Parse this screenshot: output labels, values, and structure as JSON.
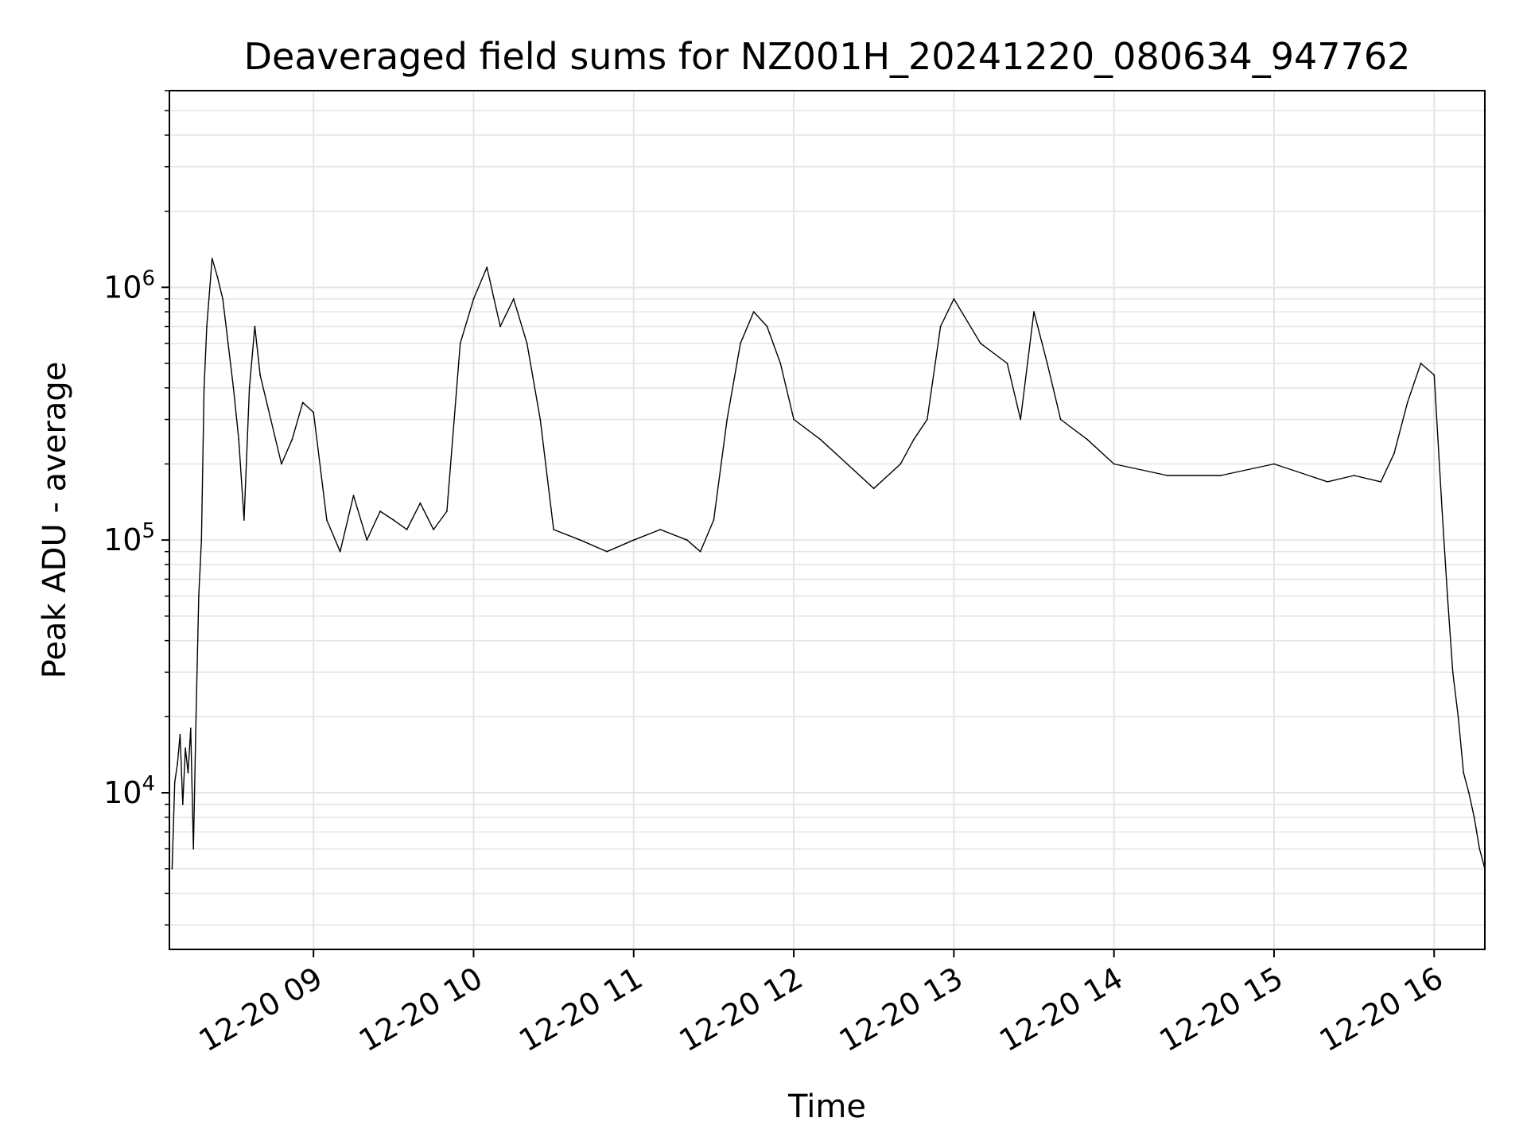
{
  "chart_data": {
    "type": "line",
    "title": "Deaveraged field sums for NZ001H_20241220_080634_947762",
    "xlabel": "Time",
    "ylabel": "Peak ADU - average",
    "yscale": "log",
    "grid": true,
    "legend": "none",
    "line_color": "#000000",
    "grid_color": "#e5e5e5",
    "xlim": [
      "2024-12-20 08:06",
      "2024-12-20 16:19"
    ],
    "ylim": [
      2400,
      6000000
    ],
    "x_ticks": [
      {
        "value": "2024-12-20 09:00",
        "label": "12-20 09"
      },
      {
        "value": "2024-12-20 10:00",
        "label": "12-20 10"
      },
      {
        "value": "2024-12-20 11:00",
        "label": "12-20 11"
      },
      {
        "value": "2024-12-20 12:00",
        "label": "12-20 12"
      },
      {
        "value": "2024-12-20 13:00",
        "label": "12-20 13"
      },
      {
        "value": "2024-12-20 14:00",
        "label": "12-20 14"
      },
      {
        "value": "2024-12-20 15:00",
        "label": "12-20 15"
      },
      {
        "value": "2024-12-20 16:00",
        "label": "12-20 16"
      }
    ],
    "y_ticks": [
      {
        "value": 10000,
        "base": "10",
        "exp": "4"
      },
      {
        "value": 100000,
        "base": "10",
        "exp": "5"
      },
      {
        "value": 1000000,
        "base": "10",
        "exp": "6"
      }
    ],
    "series": [
      {
        "x": [
          "2024-12-20 08:07",
          "2024-12-20 08:08",
          "2024-12-20 08:09",
          "2024-12-20 08:10",
          "2024-12-20 08:11",
          "2024-12-20 08:12",
          "2024-12-20 08:13",
          "2024-12-20 08:14",
          "2024-12-20 08:15",
          "2024-12-20 08:16",
          "2024-12-20 08:17",
          "2024-12-20 08:18",
          "2024-12-20 08:19",
          "2024-12-20 08:20",
          "2024-12-20 08:22",
          "2024-12-20 08:24",
          "2024-12-20 08:26",
          "2024-12-20 08:28",
          "2024-12-20 08:30",
          "2024-12-20 08:32",
          "2024-12-20 08:34",
          "2024-12-20 08:36",
          "2024-12-20 08:38",
          "2024-12-20 08:40",
          "2024-12-20 08:44",
          "2024-12-20 08:48",
          "2024-12-20 08:52",
          "2024-12-20 08:56",
          "2024-12-20 09:00",
          "2024-12-20 09:05",
          "2024-12-20 09:10",
          "2024-12-20 09:15",
          "2024-12-20 09:20",
          "2024-12-20 09:25",
          "2024-12-20 09:30",
          "2024-12-20 09:35",
          "2024-12-20 09:40",
          "2024-12-20 09:45",
          "2024-12-20 09:50",
          "2024-12-20 09:55",
          "2024-12-20 10:00",
          "2024-12-20 10:05",
          "2024-12-20 10:10",
          "2024-12-20 10:15",
          "2024-12-20 10:20",
          "2024-12-20 10:25",
          "2024-12-20 10:30",
          "2024-12-20 10:40",
          "2024-12-20 10:50",
          "2024-12-20 11:00",
          "2024-12-20 11:10",
          "2024-12-20 11:20",
          "2024-12-20 11:25",
          "2024-12-20 11:30",
          "2024-12-20 11:35",
          "2024-12-20 11:40",
          "2024-12-20 11:45",
          "2024-12-20 11:50",
          "2024-12-20 11:55",
          "2024-12-20 12:00",
          "2024-12-20 12:10",
          "2024-12-20 12:20",
          "2024-12-20 12:30",
          "2024-12-20 12:40",
          "2024-12-20 12:45",
          "2024-12-20 12:50",
          "2024-12-20 12:55",
          "2024-12-20 13:00",
          "2024-12-20 13:10",
          "2024-12-20 13:20",
          "2024-12-20 13:25",
          "2024-12-20 13:30",
          "2024-12-20 13:35",
          "2024-12-20 13:40",
          "2024-12-20 13:50",
          "2024-12-20 14:00",
          "2024-12-20 14:20",
          "2024-12-20 14:40",
          "2024-12-20 15:00",
          "2024-12-20 15:20",
          "2024-12-20 15:30",
          "2024-12-20 15:40",
          "2024-12-20 15:45",
          "2024-12-20 15:50",
          "2024-12-20 15:55",
          "2024-12-20 16:00",
          "2024-12-20 16:03",
          "2024-12-20 16:05",
          "2024-12-20 16:07",
          "2024-12-20 16:09",
          "2024-12-20 16:11",
          "2024-12-20 16:13",
          "2024-12-20 16:15",
          "2024-12-20 16:17",
          "2024-12-20 16:19"
        ],
        "values": [
          5000,
          11000,
          13000,
          17000,
          9000,
          15000,
          12000,
          18000,
          6000,
          20000,
          60000,
          100000,
          400000,
          700000,
          1300000,
          1100000,
          900000,
          600000,
          400000,
          250000,
          120000,
          400000,
          700000,
          450000,
          300000,
          200000,
          250000,
          350000,
          320000,
          120000,
          90000,
          150000,
          100000,
          130000,
          120000,
          110000,
          140000,
          110000,
          130000,
          600000,
          900000,
          1200000,
          700000,
          900000,
          600000,
          300000,
          110000,
          100000,
          90000,
          100000,
          110000,
          100000,
          90000,
          120000,
          300000,
          600000,
          800000,
          700000,
          500000,
          300000,
          250000,
          200000,
          160000,
          200000,
          250000,
          300000,
          700000,
          900000,
          600000,
          500000,
          300000,
          800000,
          500000,
          300000,
          250000,
          200000,
          180000,
          180000,
          200000,
          170000,
          180000,
          170000,
          220000,
          350000,
          500000,
          450000,
          130000,
          60000,
          30000,
          20000,
          12000,
          10000,
          8000,
          6000,
          5000
        ]
      }
    ]
  }
}
